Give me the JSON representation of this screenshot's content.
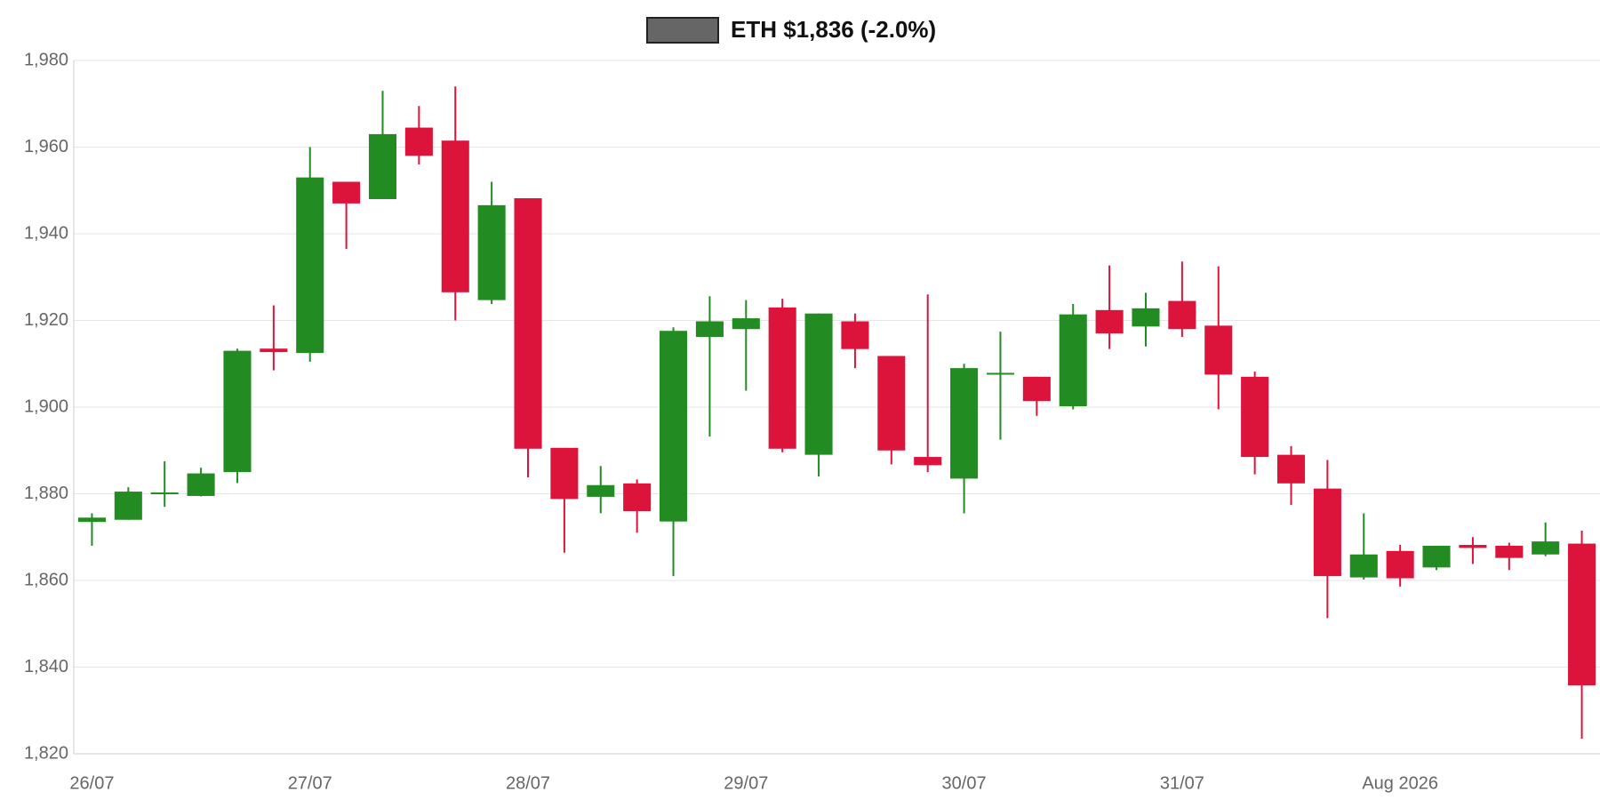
{
  "chart_data": {
    "type": "candlestick",
    "categories": [
      "26/07",
      null,
      null,
      null,
      null,
      null,
      "27/07",
      null,
      null,
      null,
      null,
      null,
      "28/07",
      null,
      null,
      null,
      null,
      null,
      "29/07",
      null,
      null,
      null,
      null,
      null,
      "30/07",
      null,
      null,
      null,
      null,
      null,
      "31/07",
      null,
      null,
      null,
      null,
      null,
      "Aug 2026",
      null,
      null,
      null,
      null,
      null
    ],
    "series": [
      {
        "name": "ETH $1,836 (-2.0%)",
        "color": "#666666",
        "open": [
          1873.5,
          1874,
          1880,
          1879.5,
          1885,
          1913.5,
          1912.5,
          1952,
          1948,
          1964.5,
          1961.5,
          1924.7,
          1948.2,
          1890.6,
          1879.3,
          1882.4,
          1873.6,
          1916.2,
          1918,
          1923,
          1889,
          1919.8,
          1911.8,
          1888.5,
          1883.5,
          1907.7,
          1907,
          1900.2,
          1922.4,
          1918.6,
          1924.5,
          1918.8,
          1907,
          1889,
          1881.2,
          1860.7,
          1866.8,
          1863,
          1868.2,
          1868,
          1866,
          1868.5
        ],
        "high": [
          1875.5,
          1881.5,
          1887.5,
          1886,
          1913.5,
          1923.5,
          1960,
          1952,
          1973,
          1969.5,
          1974,
          1952,
          1948.2,
          1890.6,
          1886.4,
          1883.3,
          1918.4,
          1925.6,
          1924.7,
          1925,
          1921.6,
          1921.6,
          1911.8,
          1926,
          1910,
          1917.4,
          1907,
          1923.8,
          1932.7,
          1926.4,
          1933.6,
          1932.5,
          1908.2,
          1891,
          1887.8,
          1875.5,
          1868.2,
          1868,
          1870,
          1868.7,
          1873.4,
          1871.5
        ],
        "low": [
          1868,
          1874,
          1877,
          1879.4,
          1882.5,
          1908.5,
          1910.5,
          1936.5,
          1948,
          1956,
          1920,
          1923.8,
          1883.8,
          1866.4,
          1875.5,
          1871,
          1861,
          1893.2,
          1903.8,
          1889.6,
          1884,
          1909,
          1886.8,
          1885,
          1875.5,
          1892.5,
          1898,
          1899.5,
          1913.4,
          1914,
          1916.2,
          1899.5,
          1884.5,
          1877.4,
          1851.3,
          1860.2,
          1858.6,
          1862.4,
          1863.8,
          1862.4,
          1865.6,
          1823.5
        ],
        "close": [
          1874.5,
          1880.5,
          1880.3,
          1884.7,
          1913,
          1912.7,
          1953,
          1947,
          1963,
          1958,
          1926.5,
          1946.6,
          1890.4,
          1878.8,
          1882,
          1876,
          1917.6,
          1919.8,
          1920.5,
          1890.4,
          1921.6,
          1913.4,
          1890,
          1886.6,
          1909,
          1907.9,
          1901.4,
          1921.4,
          1917,
          1922.8,
          1918,
          1907.5,
          1888.5,
          1882.4,
          1861,
          1866,
          1860.5,
          1868,
          1867.5,
          1865.2,
          1869,
          1835.8
        ]
      }
    ],
    "up_color": "#228b22",
    "down_color": "#dc143c",
    "ylim": [
      1820,
      1980
    ],
    "yticks": [
      {
        "value": 1820,
        "label": "1,820"
      },
      {
        "value": 1840,
        "label": "1,840"
      },
      {
        "value": 1860,
        "label": "1,860"
      },
      {
        "value": 1880,
        "label": "1,880"
      },
      {
        "value": 1900,
        "label": "1,900"
      },
      {
        "value": 1920,
        "label": "1,920"
      },
      {
        "value": 1940,
        "label": "1,940"
      },
      {
        "value": 1960,
        "label": "1,960"
      },
      {
        "value": 1980,
        "label": "1,980"
      }
    ],
    "grid": true
  }
}
